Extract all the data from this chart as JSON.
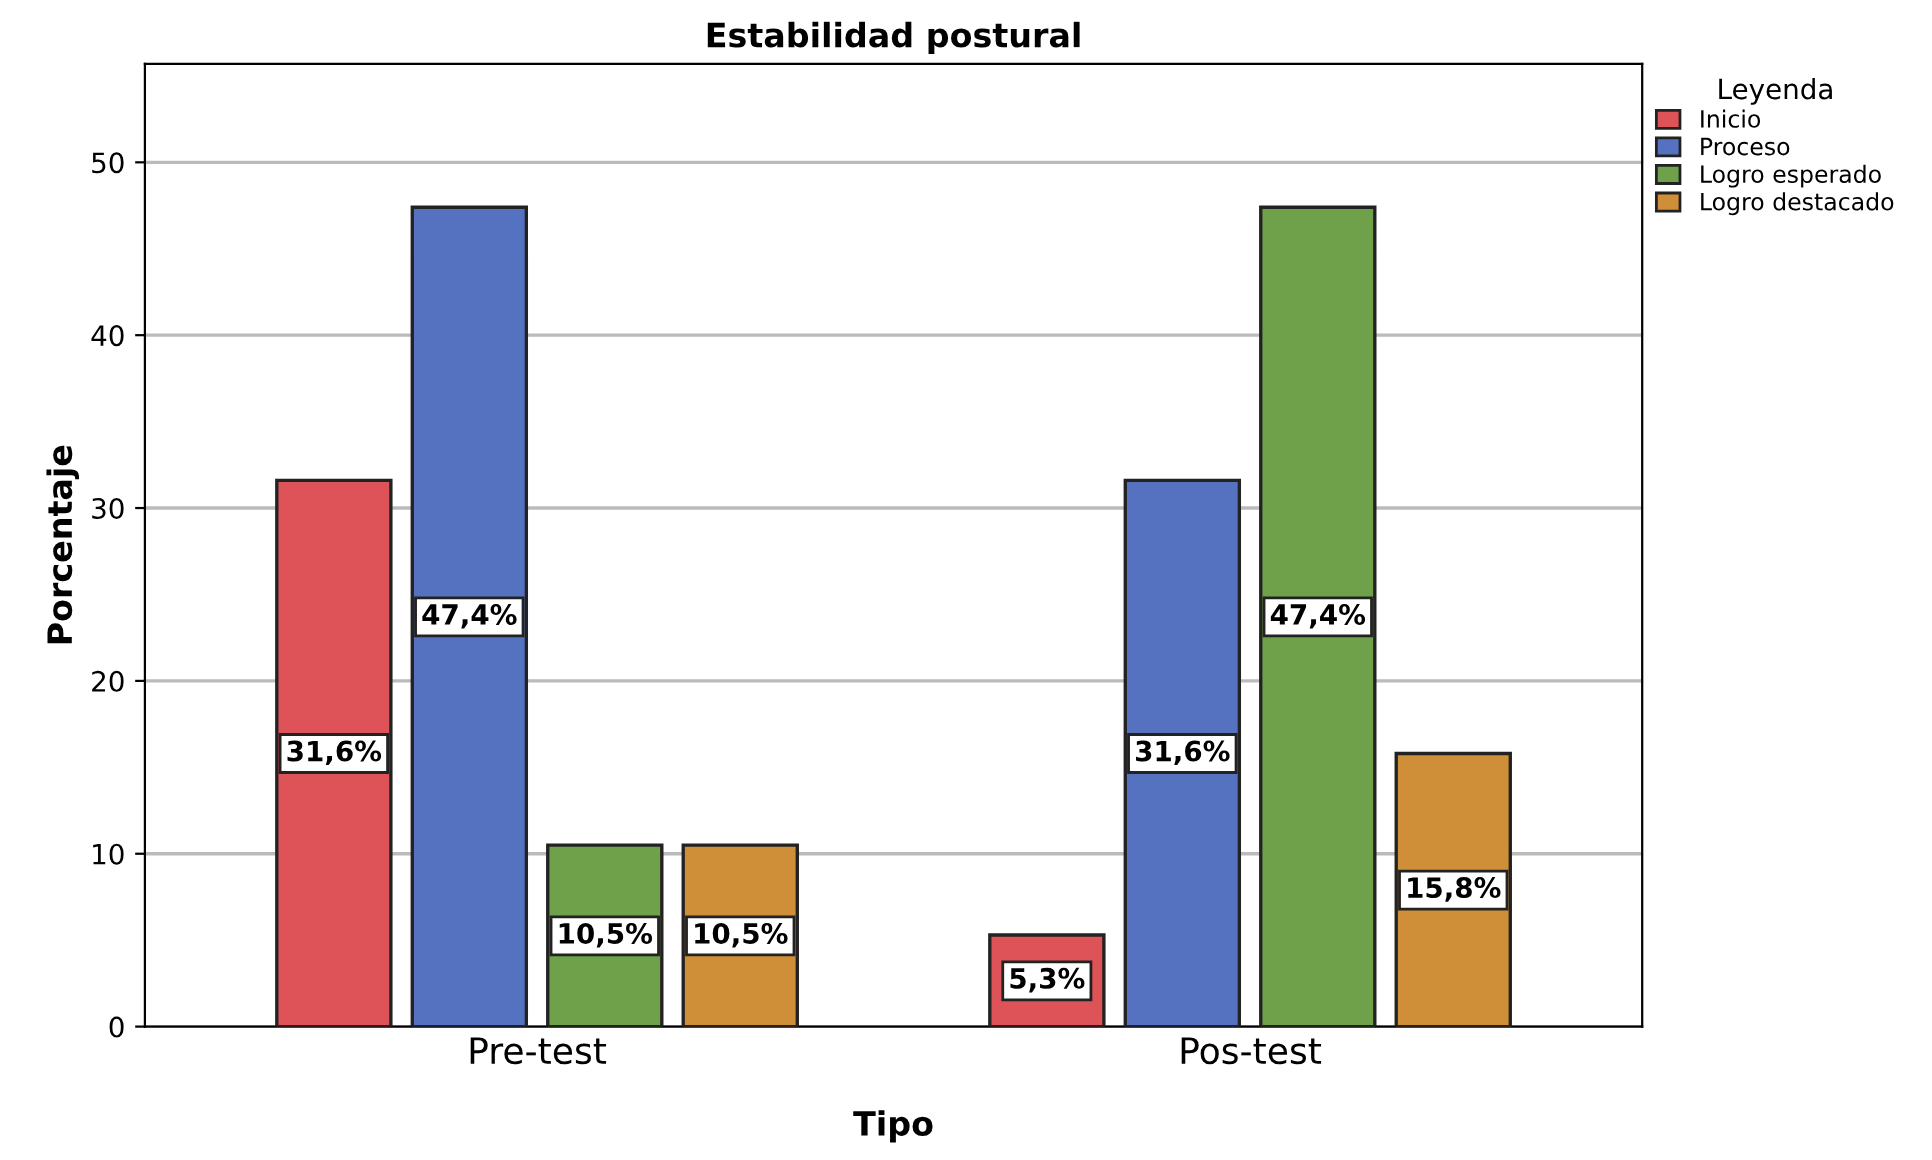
{
  "chart_data": {
    "type": "bar",
    "title": "Estabilidad postural",
    "xlabel": "Tipo",
    "ylabel": "Porcentaje",
    "legend_title": "Leyenda",
    "categories": [
      "Pre-test",
      "Pos-test"
    ],
    "series": [
      {
        "name": "Inicio",
        "color": "#dd5358",
        "values": [
          31.6,
          5.3
        ],
        "value_labels": [
          "31,6%",
          "5,3%"
        ]
      },
      {
        "name": "Proceso",
        "color": "#5472c0",
        "values": [
          47.4,
          31.6
        ],
        "value_labels": [
          "47,4%",
          "31,6%"
        ]
      },
      {
        "name": "Logro esperado",
        "color": "#6ea14a",
        "values": [
          10.5,
          47.4
        ],
        "value_labels": [
          "10,5%",
          "47,4%"
        ]
      },
      {
        "name": "Logro destacado",
        "color": "#cf8f38",
        "values": [
          10.5,
          15.8
        ],
        "value_labels": [
          "10,5%",
          "15,8%"
        ]
      }
    ],
    "ylim": [
      0,
      55.7
    ],
    "yticks": [
      0,
      10,
      20,
      30,
      40,
      50
    ],
    "grid": "y",
    "legend": "top right"
  }
}
